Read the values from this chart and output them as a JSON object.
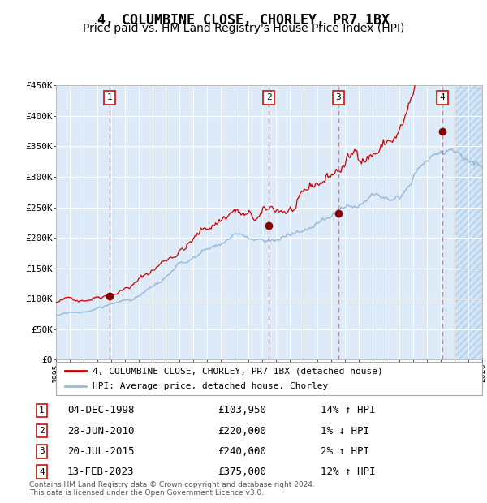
{
  "title": "4, COLUMBINE CLOSE, CHORLEY, PR7 1BX",
  "subtitle": "Price paid vs. HM Land Registry's House Price Index (HPI)",
  "ylim": [
    0,
    450000
  ],
  "xlim_start": 1995.0,
  "xlim_end": 2026.0,
  "background_color": "#ddeaf7",
  "hatch_region_start": 2024.0,
  "grid_color": "#ccddee",
  "red_line_color": "#cc0000",
  "blue_line_color": "#99bbdd",
  "sale_marker_color": "#880000",
  "dashed_line_color": "#dd6666",
  "sales": [
    {
      "label": "1",
      "year": 1998.92,
      "price": 103950,
      "date": "04-DEC-1998",
      "hpi_pct": "14% ↑ HPI"
    },
    {
      "label": "2",
      "year": 2010.49,
      "price": 220000,
      "date": "28-JUN-2010",
      "hpi_pct": "1% ↓ HPI"
    },
    {
      "label": "3",
      "year": 2015.55,
      "price": 240000,
      "date": "20-JUL-2015",
      "hpi_pct": "2% ↑ HPI"
    },
    {
      "label": "4",
      "year": 2023.12,
      "price": 375000,
      "date": "13-FEB-2023",
      "hpi_pct": "12% ↑ HPI"
    }
  ],
  "legend_label_red": "4, COLUMBINE CLOSE, CHORLEY, PR7 1BX (detached house)",
  "legend_label_blue": "HPI: Average price, detached house, Chorley",
  "footer": "Contains HM Land Registry data © Crown copyright and database right 2024.\nThis data is licensed under the Open Government Licence v3.0.",
  "title_fontsize": 12,
  "subtitle_fontsize": 10
}
